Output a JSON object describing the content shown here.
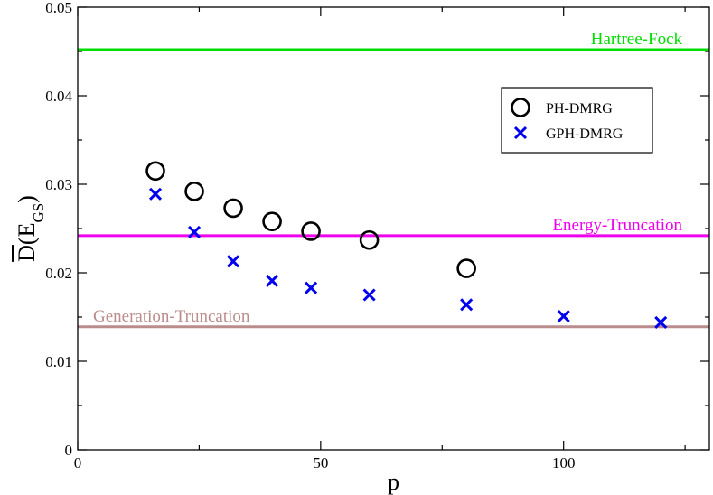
{
  "chart_data": {
    "type": "scatter",
    "xlabel": "p",
    "ylabel": {
      "main": "D",
      "paren_open": "(E",
      "subscript": "GS",
      "paren_close": ")"
    },
    "xlim": [
      0,
      130
    ],
    "ylim": [
      0,
      0.05
    ],
    "x_ticks": [
      0,
      50,
      100
    ],
    "x_tick_labels": [
      "0",
      "50",
      "100"
    ],
    "y_ticks": [
      0,
      0.01,
      0.02,
      0.03,
      0.04,
      0.05
    ],
    "y_tick_labels": [
      "0",
      "0.01",
      "0.02",
      "0.03",
      "0.04",
      "0.05"
    ],
    "grid": false,
    "legend_position": "top-right",
    "series": [
      {
        "name": "PH-DMRG",
        "marker": "circle",
        "color": "#000000",
        "x": [
          16,
          24,
          32,
          40,
          48,
          60,
          80
        ],
        "y": [
          0.0315,
          0.0292,
          0.0273,
          0.0258,
          0.0247,
          0.0237,
          0.0205
        ]
      },
      {
        "name": "GPH-DMRG",
        "marker": "x",
        "color": "#0000ee",
        "x": [
          16,
          24,
          32,
          40,
          48,
          60,
          80,
          100,
          120
        ],
        "y": [
          0.0289,
          0.0246,
          0.0213,
          0.0191,
          0.0183,
          0.0175,
          0.0164,
          0.0151,
          0.0144
        ]
      }
    ],
    "reference_lines": [
      {
        "name": "Hartree-Fock",
        "y": 0.0452,
        "color": "#00dd00",
        "label_anchor": "right"
      },
      {
        "name": "Energy-Truncation",
        "y": 0.0242,
        "color": "#ee00ee",
        "label_anchor": "right"
      },
      {
        "name": "Generation-Truncation",
        "y": 0.0139,
        "color": "#bb8c8c",
        "label_anchor": "left"
      }
    ]
  }
}
